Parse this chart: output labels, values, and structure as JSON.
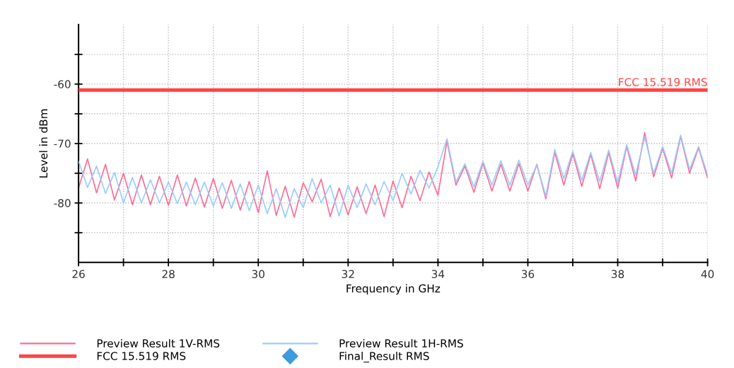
{
  "chart_data": {
    "type": "line",
    "xlabel": "Frequency in GHz",
    "ylabel": "Level in dBm",
    "x": [
      26.0,
      26.2,
      26.4,
      26.6,
      26.8,
      27.0,
      27.2,
      27.4,
      27.6,
      27.8,
      28.0,
      28.2,
      28.4,
      28.6,
      28.8,
      29.0,
      29.2,
      29.4,
      29.6,
      29.8,
      30.0,
      30.2,
      30.4,
      30.6,
      30.8,
      31.0,
      31.2,
      31.4,
      31.6,
      31.8,
      32.0,
      32.2,
      32.4,
      32.6,
      32.8,
      33.0,
      33.2,
      33.4,
      33.6,
      33.8,
      34.0,
      34.2,
      34.4,
      34.6,
      34.8,
      35.0,
      35.2,
      35.4,
      35.6,
      35.8,
      36.0,
      36.2,
      36.4,
      36.6,
      36.8,
      37.0,
      37.2,
      37.4,
      37.6,
      37.8,
      38.0,
      38.2,
      38.4,
      38.6,
      38.8,
      39.0,
      39.2,
      39.4,
      39.6,
      39.8,
      40.0
    ],
    "series": [
      {
        "name": "Preview Result 1V-RMS",
        "color": "#ff6b94",
        "values": [
          -77.5,
          -72.6,
          -78.3,
          -73.5,
          -79.5,
          -75,
          -80.3,
          -75.3,
          -80.3,
          -75.5,
          -80.4,
          -75.3,
          -80.5,
          -75.8,
          -80.7,
          -75.9,
          -80.9,
          -76.2,
          -81.2,
          -76.4,
          -81.6,
          -74.6,
          -82.1,
          -77.2,
          -82.4,
          -76.6,
          -79.8,
          -76,
          -82.3,
          -77.5,
          -82,
          -77.3,
          -81.8,
          -77,
          -82.3,
          -76.3,
          -80.8,
          -75.5,
          -79.6,
          -74.8,
          -78.7,
          -69.6,
          -77,
          -73.8,
          -78.2,
          -73.3,
          -78,
          -73.5,
          -78,
          -73.4,
          -78,
          -73.5,
          -79.3,
          -71.5,
          -77,
          -71.7,
          -77.2,
          -71.8,
          -77.6,
          -71.5,
          -77.5,
          -70.5,
          -76.3,
          -68.2,
          -75.6,
          -70.8,
          -75.8,
          -68.8,
          -75,
          -70.7,
          -75.8
        ]
      },
      {
        "name": "Preview Result 1H-RMS",
        "color": "#99ccff",
        "values": [
          -73,
          -77.4,
          -73.8,
          -78.4,
          -74.9,
          -80,
          -75.7,
          -80,
          -76.1,
          -80,
          -76.5,
          -80.1,
          -76.5,
          -80.3,
          -76.5,
          -80.5,
          -76.6,
          -80.9,
          -76.8,
          -81.3,
          -77,
          -81.8,
          -77.6,
          -82.4,
          -77.6,
          -80.8,
          -75.9,
          -80,
          -77,
          -82.2,
          -77,
          -80.8,
          -76.8,
          -80.3,
          -76.4,
          -79.6,
          -75,
          -78.5,
          -74.5,
          -77.5,
          -73.9,
          -69.2,
          -76.5,
          -73.4,
          -77.3,
          -73,
          -77,
          -72.9,
          -77,
          -72.8,
          -77,
          -73.6,
          -78.8,
          -71,
          -75.9,
          -71.3,
          -76.2,
          -71.5,
          -76.4,
          -71.1,
          -76.6,
          -70.2,
          -75.3,
          -68.9,
          -75,
          -70.5,
          -75,
          -68.6,
          -74.4,
          -70.5,
          -75.3
        ]
      },
      {
        "name": "Final_Result RMS",
        "type": "scatter",
        "marker": "diamond",
        "values": [
          null,
          null,
          null,
          null,
          null,
          null,
          null,
          null,
          null,
          null,
          null,
          null,
          null,
          null,
          null,
          null,
          null,
          null,
          null,
          null,
          null,
          null,
          null,
          null,
          null,
          null,
          null,
          null,
          null,
          null,
          null,
          null,
          null,
          null,
          null,
          null,
          null,
          null,
          null,
          null,
          null,
          null,
          null,
          null,
          null,
          null,
          null,
          null,
          null,
          null,
          null,
          null,
          null,
          null,
          null,
          null,
          null,
          null,
          null,
          null,
          null,
          null,
          null,
          null,
          null,
          null,
          null,
          null,
          null,
          null,
          null
        ]
      }
    ],
    "ref_lines": [
      {
        "axis": "y",
        "value": -61,
        "label": "FCC 15.519 RMS",
        "color": "#ff4444"
      }
    ],
    "xlim": [
      26,
      40
    ],
    "ylim": [
      -90,
      -50
    ],
    "xticks": [
      26,
      {
        "value": 27,
        "label": null
      },
      28,
      {
        "value": 29,
        "label": null
      },
      30,
      {
        "value": 31,
        "label": null
      },
      32,
      {
        "value": 33,
        "label": null
      },
      34,
      {
        "value": 35,
        "label": null
      },
      36,
      {
        "value": 37,
        "label": null
      },
      38,
      {
        "value": 39,
        "label": null
      },
      40
    ],
    "yticks": [
      {
        "value": -85,
        "label": null
      },
      -80,
      {
        "value": -75,
        "label": null
      },
      -70,
      {
        "value": -65,
        "label": null
      },
      -60,
      {
        "value": -55,
        "label": null
      }
    ],
    "grid": true,
    "legend": "bottom"
  }
}
